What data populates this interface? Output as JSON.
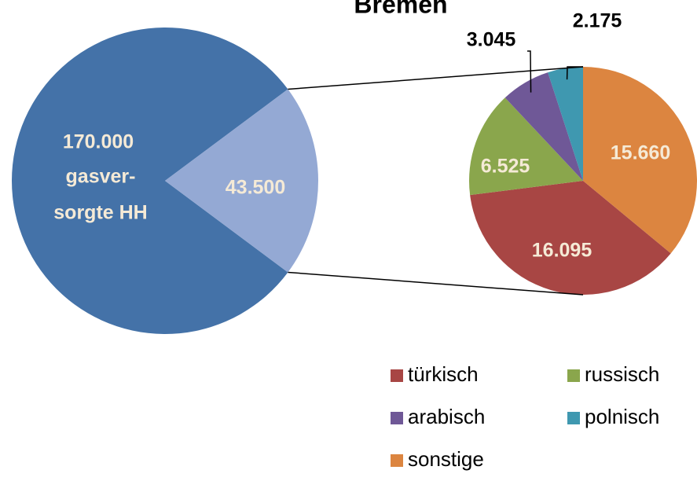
{
  "chart_data": [
    {
      "type": "pie",
      "title": "Bremen",
      "values": [
        170000,
        43500
      ],
      "value_labels": [
        "170.000",
        "43.500"
      ],
      "label_lines": [
        "gasver-",
        "sorgte HH"
      ],
      "colors": [
        "#4472a8",
        "#94a9d4"
      ]
    },
    {
      "type": "pie",
      "categories": [
        "türkisch",
        "russisch",
        "arabisch",
        "polnisch",
        "sonstige"
      ],
      "values": [
        16095,
        6525,
        3045,
        2175,
        15660
      ],
      "value_labels": [
        "16.095",
        "6.525",
        "3.045",
        "2.175",
        "15.660"
      ],
      "colors": [
        "#a84644",
        "#8aa64c",
        "#6f5897",
        "#3f98b0",
        "#dc8540"
      ]
    }
  ]
}
